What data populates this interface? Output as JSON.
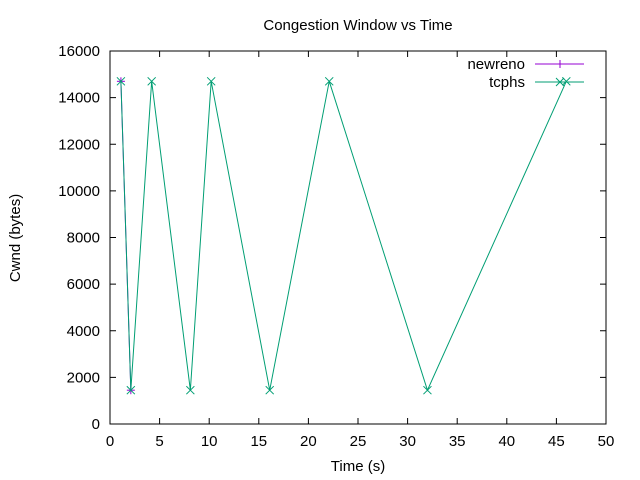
{
  "chart_data": {
    "type": "line",
    "title": "Congestion Window vs Time",
    "xlabel": "Time (s)",
    "ylabel": "Cwnd (bytes)",
    "xlim": [
      0,
      50
    ],
    "ylim": [
      0,
      16000
    ],
    "x_ticks": [
      0,
      5,
      10,
      15,
      20,
      25,
      30,
      35,
      40,
      45,
      50
    ],
    "y_ticks": [
      0,
      2000,
      4000,
      6000,
      8000,
      10000,
      12000,
      14000,
      16000
    ],
    "grid": false,
    "legend_position": "top-right",
    "series": [
      {
        "name": "newreno",
        "color": "#9400d3",
        "marker": "plus",
        "x": [
          1.1,
          2.1
        ],
        "y": [
          14700,
          1450
        ]
      },
      {
        "name": "tcphs",
        "color": "#009e73",
        "marker": "cross",
        "x": [
          1.1,
          2.1,
          4.2,
          8.1,
          10.2,
          16.1,
          22.1,
          32.0,
          46.0
        ],
        "y": [
          14700,
          1450,
          14700,
          1450,
          14700,
          1450,
          14700,
          1450,
          14700
        ]
      }
    ]
  }
}
